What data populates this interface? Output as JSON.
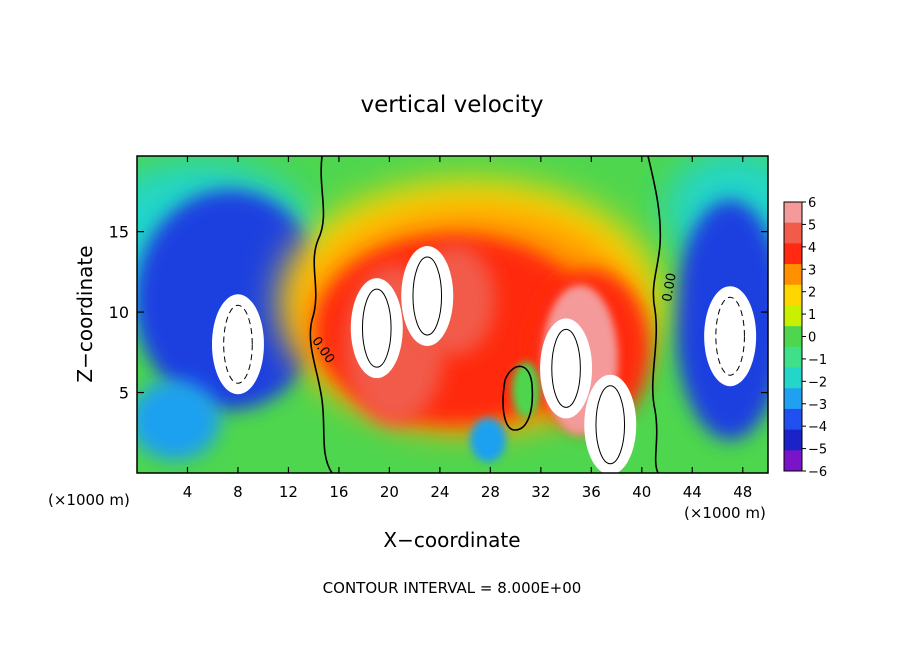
{
  "chart_data": {
    "type": "heatmap",
    "title": "vertical velocity",
    "xlabel": "X−coordinate",
    "ylabel": "Z−coordinate",
    "x_unit": "(×1000 m)",
    "y_unit": "(×1000 m)",
    "xlim": [
      0,
      50
    ],
    "ylim": [
      0,
      19.7
    ],
    "x_ticks": [
      "4",
      "8",
      "12",
      "16",
      "20",
      "24",
      "28",
      "32",
      "36",
      "40",
      "44",
      "48"
    ],
    "y_ticks": [
      "5",
      "10",
      "15"
    ],
    "colorbar": {
      "labels": [
        "6",
        "5",
        "4",
        "3",
        "2",
        "1",
        "0",
        "−1",
        "−2",
        "−3",
        "−4",
        "−5",
        "−6"
      ],
      "colors": [
        "#f49a9a",
        "#f25a4a",
        "#ff2a10",
        "#ff9000",
        "#ffd700",
        "#c8f000",
        "#4ed64e",
        "#3ee08a",
        "#22d6c8",
        "#1fa0f0",
        "#2050f0",
        "#1a22c8",
        "#7a14c8"
      ]
    },
    "contour_labels": [
      "0.00",
      "0.00"
    ],
    "footer": "CONTOUR INTERVAL = 8.000E+00",
    "features": [
      {
        "x": 8,
        "z": 8,
        "value": -6.5
      },
      {
        "x": 19,
        "z": 9,
        "value": 7
      },
      {
        "x": 23,
        "z": 11,
        "value": 6.5
      },
      {
        "x": 34,
        "z": 6.5,
        "value": 7
      },
      {
        "x": 37.5,
        "z": 3,
        "value": 6.5
      },
      {
        "x": 47,
        "z": 8.5,
        "value": -7
      }
    ]
  }
}
